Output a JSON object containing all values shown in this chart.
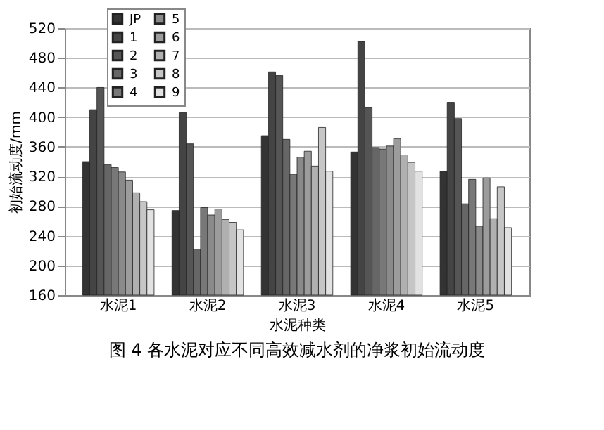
{
  "chart_data": {
    "type": "bar",
    "title": "图 4   各水泥对应不同高效减水剂的净浆初始流动度",
    "xlabel": "水泥种类",
    "ylabel": "初始流动度/mm",
    "categories": [
      "水泥1",
      "水泥2",
      "水泥3",
      "水泥4",
      "水泥5"
    ],
    "series": [
      {
        "name": "JP",
        "color": "#333333",
        "values": [
          340,
          274,
          375,
          353,
          327
        ]
      },
      {
        "name": "1",
        "color": "#444444",
        "values": [
          410,
          406,
          461,
          502,
          420
        ]
      },
      {
        "name": "2",
        "color": "#555555",
        "values": [
          440,
          364,
          456,
          413,
          398
        ]
      },
      {
        "name": "3",
        "color": "#666666",
        "values": [
          336,
          222,
          370,
          359,
          283
        ]
      },
      {
        "name": "4",
        "color": "#787878",
        "values": [
          332,
          278,
          323,
          357,
          316
        ]
      },
      {
        "name": "5",
        "color": "#8a8a8a",
        "values": [
          326,
          268,
          346,
          361,
          253
        ]
      },
      {
        "name": "6",
        "color": "#9c9c9c",
        "values": [
          315,
          276,
          354,
          371,
          318
        ]
      },
      {
        "name": "7",
        "color": "#b0b0b0",
        "values": [
          298,
          262,
          334,
          349,
          263
        ]
      },
      {
        "name": "8",
        "color": "#c6c6c6",
        "values": [
          286,
          258,
          386,
          339,
          306
        ]
      },
      {
        "name": "9",
        "color": "#e2e2e2",
        "values": [
          275,
          248,
          327,
          327,
          251
        ]
      }
    ],
    "ylim": [
      160,
      520
    ],
    "yticks": [
      160,
      200,
      240,
      280,
      320,
      360,
      400,
      440,
      480,
      520
    ],
    "grid": "y",
    "legend": "top left"
  }
}
